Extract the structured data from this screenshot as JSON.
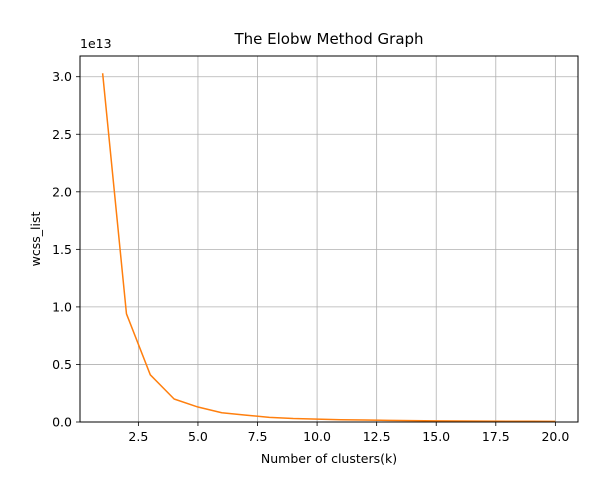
{
  "chart_data": {
    "type": "line",
    "title": "The Elobw Method Graph",
    "xlabel": "Number of clusters(k)",
    "ylabel": "wcss_list",
    "y_offset_label": "1e13",
    "y_scale": 10000000000000.0,
    "xlim": [
      0.05,
      20.95
    ],
    "ylim": [
      0,
      3.18
    ],
    "x_ticks": [
      2.5,
      5.0,
      7.5,
      10.0,
      12.5,
      15.0,
      17.5,
      20.0
    ],
    "x_tick_labels": [
      "2.5",
      "5.0",
      "7.5",
      "10.0",
      "12.5",
      "15.0",
      "17.5",
      "20.0"
    ],
    "y_ticks": [
      0.0,
      0.5,
      1.0,
      1.5,
      2.0,
      2.5,
      3.0
    ],
    "y_tick_labels": [
      "0.0",
      "0.5",
      "1.0",
      "1.5",
      "2.0",
      "2.5",
      "3.0"
    ],
    "grid": true,
    "series": [
      {
        "color": "#ff7f0e",
        "x": [
          1,
          2,
          3,
          4,
          5,
          6,
          7,
          8,
          9,
          10,
          11,
          12,
          13,
          14,
          15,
          16,
          17,
          18,
          19,
          20
        ],
        "y": [
          3.03,
          0.94,
          0.41,
          0.2,
          0.13,
          0.08,
          0.06,
          0.04,
          0.03,
          0.025,
          0.02,
          0.017,
          0.014,
          0.012,
          0.01,
          0.009,
          0.008,
          0.007,
          0.006,
          0.005
        ]
      }
    ]
  }
}
